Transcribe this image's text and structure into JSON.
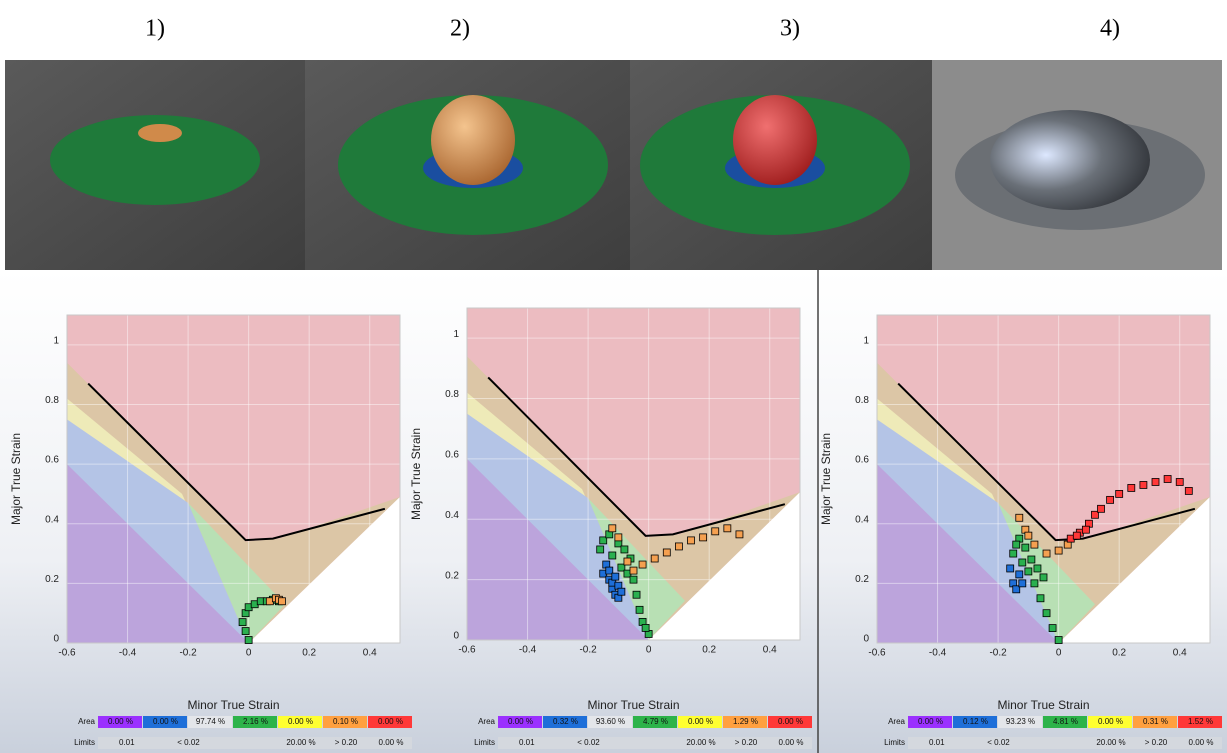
{
  "panel_labels": [
    "1)",
    "2)",
    "3)",
    "4)"
  ],
  "chart_data": [
    {
      "type": "flc",
      "xlabel": "Minor True Strain",
      "ylabel": "Major True Strain",
      "xlim": [
        -0.6,
        0.5
      ],
      "ylim": [
        0,
        1.1
      ],
      "xticks": [
        -0.6,
        -0.4,
        -0.2,
        0,
        0.2,
        0.4
      ],
      "yticks": [
        0,
        0.2,
        0.4,
        0.6,
        0.8,
        1
      ],
      "grid": true,
      "zones": [
        {
          "color": "#ecbcc1",
          "x": [
            -0.6,
            0.5,
            0.5,
            -0.6
          ],
          "y": [
            0,
            0,
            1.1,
            1.1
          ]
        },
        {
          "color": "#dcc6a6",
          "x": [
            -0.6,
            -0.01,
            0.1,
            0.5,
            0,
            -0.6
          ],
          "y": [
            0.94,
            0.34,
            0.35,
            0.49,
            0,
            0
          ]
        },
        {
          "color": "#eeeab8",
          "x": [
            -0.6,
            -0.22,
            0,
            -0.6
          ],
          "y": [
            0.82,
            0.5,
            0,
            0
          ]
        },
        {
          "color": "#b4c4e6",
          "x": [
            -0.6,
            -0.2,
            0,
            -0.6
          ],
          "y": [
            0.75,
            0.47,
            0,
            0
          ]
        },
        {
          "color": "#b8e0b4",
          "x": [
            -0.2,
            0.12,
            0
          ],
          "y": [
            0.47,
            0.13,
            0
          ]
        },
        {
          "color": "#bca4dc",
          "x": [
            -0.6,
            0,
            -0.6
          ],
          "y": [
            0.6,
            0,
            0
          ]
        },
        {
          "color": "#ffffff",
          "x": [
            0,
            0.5,
            0.5
          ],
          "y": [
            0,
            0.49,
            0
          ]
        }
      ],
      "flc": {
        "color": "#000000",
        "x": [
          -0.53,
          -0.01,
          0.08,
          0.45
        ],
        "y": [
          0.87,
          0.345,
          0.35,
          0.45
        ]
      },
      "series": [
        {
          "color": "#2ab04f",
          "x": [
            0,
            -0.01,
            -0.02,
            -0.01,
            0,
            0.02,
            0.04,
            0.06,
            0.08,
            0.1
          ],
          "y": [
            0.01,
            0.04,
            0.07,
            0.1,
            0.12,
            0.13,
            0.14,
            0.14,
            0.145,
            0.14
          ]
        },
        {
          "color": "#f5a050",
          "x": [
            0.07,
            0.09,
            0.1,
            0.11
          ],
          "y": [
            0.14,
            0.15,
            0.145,
            0.14
          ]
        }
      ],
      "area_label": "Area",
      "area": [
        "0.00 %",
        "0.00 %",
        "97.74 %",
        "2.16 %",
        "0.00 %",
        "0.10 %",
        "0.00 %"
      ],
      "area_colors": [
        "#9b30ff",
        "#1e6fd9",
        "#e4e6ea",
        "#2db34a",
        "#ffff30",
        "#ffa040",
        "#ff3838"
      ],
      "limits_label": "Limits",
      "limits": [
        "0.01",
        "< 0.02",
        "20.00 %",
        "> 0.20",
        "0.00 %"
      ]
    },
    {
      "type": "flc",
      "xlabel": "Minor True Strain",
      "ylabel": "Major True Strain",
      "xlim": [
        -0.6,
        0.5
      ],
      "ylim": [
        0,
        1.1
      ],
      "xticks": [
        -0.6,
        -0.4,
        -0.2,
        0,
        0.2,
        0.4
      ],
      "yticks": [
        0,
        0.2,
        0.4,
        0.6,
        0.8,
        1
      ],
      "grid": true,
      "zones": [
        {
          "color": "#ecbcc1",
          "x": [
            -0.6,
            0.5,
            0.5,
            -0.6
          ],
          "y": [
            0,
            0,
            1.1,
            1.1
          ]
        },
        {
          "color": "#dcc6a6",
          "x": [
            -0.6,
            -0.01,
            0.1,
            0.5,
            0,
            -0.6
          ],
          "y": [
            0.94,
            0.34,
            0.35,
            0.49,
            0,
            0
          ]
        },
        {
          "color": "#eeeab8",
          "x": [
            -0.6,
            -0.22,
            0,
            -0.6
          ],
          "y": [
            0.82,
            0.5,
            0,
            0
          ]
        },
        {
          "color": "#b4c4e6",
          "x": [
            -0.6,
            -0.2,
            0,
            -0.6
          ],
          "y": [
            0.75,
            0.47,
            0,
            0
          ]
        },
        {
          "color": "#b8e0b4",
          "x": [
            -0.2,
            0.12,
            0
          ],
          "y": [
            0.47,
            0.13,
            0
          ]
        },
        {
          "color": "#bca4dc",
          "x": [
            -0.6,
            0,
            -0.6
          ],
          "y": [
            0.6,
            0,
            0
          ]
        },
        {
          "color": "#ffffff",
          "x": [
            0,
            0.5,
            0.5
          ],
          "y": [
            0,
            0.49,
            0
          ]
        }
      ],
      "flc": {
        "color": "#000000",
        "x": [
          -0.53,
          -0.01,
          0.08,
          0.45
        ],
        "y": [
          0.87,
          0.345,
          0.35,
          0.45
        ]
      },
      "series": [
        {
          "color": "#1e6fd9",
          "x": [
            -0.15,
            -0.14,
            -0.13,
            -0.12,
            -0.11,
            -0.1,
            -0.13,
            -0.12,
            -0.1,
            -0.09,
            -0.11
          ],
          "y": [
            0.22,
            0.25,
            0.2,
            0.17,
            0.15,
            0.14,
            0.23,
            0.19,
            0.18,
            0.16,
            0.21
          ]
        },
        {
          "color": "#2ab04f",
          "x": [
            -0.16,
            -0.15,
            -0.13,
            -0.1,
            -0.08,
            -0.06,
            -0.12,
            -0.09,
            -0.04,
            -0.03,
            -0.02,
            0,
            -0.01,
            -0.07,
            -0.05
          ],
          "y": [
            0.3,
            0.33,
            0.35,
            0.32,
            0.3,
            0.27,
            0.28,
            0.24,
            0.15,
            0.1,
            0.06,
            0.02,
            0.04,
            0.22,
            0.2
          ]
        },
        {
          "color": "#f5a050",
          "x": [
            -0.07,
            -0.05,
            -0.02,
            0.02,
            0.06,
            0.1,
            0.14,
            0.18,
            0.22,
            0.26,
            0.3,
            -0.12,
            -0.1
          ],
          "y": [
            0.26,
            0.23,
            0.25,
            0.27,
            0.29,
            0.31,
            0.33,
            0.34,
            0.36,
            0.37,
            0.35,
            0.37,
            0.34
          ]
        }
      ],
      "area_label": "Area",
      "area": [
        "0.00 %",
        "0.32 %",
        "93.60 %",
        "4.79 %",
        "0.00 %",
        "1.29 %",
        "0.00 %"
      ],
      "area_colors": [
        "#9b30ff",
        "#1e6fd9",
        "#e4e6ea",
        "#2db34a",
        "#ffff30",
        "#ffa040",
        "#ff3838"
      ],
      "limits_label": "Limits",
      "limits": [
        "0.01",
        "< 0.02",
        "20.00 %",
        "> 0.20",
        "0.00 %"
      ]
    },
    {
      "type": "flc",
      "xlabel": "Minor True Strain",
      "ylabel": "Major True Strain",
      "xlim": [
        -0.6,
        0.5
      ],
      "ylim": [
        0,
        1.1
      ],
      "xticks": [
        -0.6,
        -0.4,
        -0.2,
        0,
        0.2,
        0.4
      ],
      "yticks": [
        0,
        0.2,
        0.4,
        0.6,
        0.8,
        1
      ],
      "grid": true,
      "zones": [
        {
          "color": "#ecbcc1",
          "x": [
            -0.6,
            0.5,
            0.5,
            -0.6
          ],
          "y": [
            0,
            0,
            1.1,
            1.1
          ]
        },
        {
          "color": "#dcc6a6",
          "x": [
            -0.6,
            -0.01,
            0.1,
            0.5,
            0,
            -0.6
          ],
          "y": [
            0.94,
            0.34,
            0.35,
            0.49,
            0,
            0
          ]
        },
        {
          "color": "#eeeab8",
          "x": [
            -0.6,
            -0.22,
            0,
            -0.6
          ],
          "y": [
            0.82,
            0.5,
            0,
            0
          ]
        },
        {
          "color": "#b4c4e6",
          "x": [
            -0.6,
            -0.2,
            0,
            -0.6
          ],
          "y": [
            0.75,
            0.47,
            0,
            0
          ]
        },
        {
          "color": "#b8e0b4",
          "x": [
            -0.2,
            0.12,
            0
          ],
          "y": [
            0.47,
            0.13,
            0
          ]
        },
        {
          "color": "#bca4dc",
          "x": [
            -0.6,
            0,
            -0.6
          ],
          "y": [
            0.6,
            0,
            0
          ]
        },
        {
          "color": "#ffffff",
          "x": [
            0,
            0.5,
            0.5
          ],
          "y": [
            0,
            0.49,
            0
          ]
        }
      ],
      "flc": {
        "color": "#000000",
        "x": [
          -0.53,
          -0.01,
          0.08,
          0.45
        ],
        "y": [
          0.87,
          0.345,
          0.35,
          0.45
        ]
      },
      "series": [
        {
          "color": "#1e6fd9",
          "x": [
            -0.16,
            -0.15,
            -0.14,
            -0.13,
            -0.12
          ],
          "y": [
            0.25,
            0.2,
            0.18,
            0.23,
            0.2
          ]
        },
        {
          "color": "#2ab04f",
          "x": [
            -0.15,
            -0.13,
            -0.11,
            -0.09,
            -0.07,
            -0.05,
            -0.12,
            -0.1,
            -0.06,
            -0.04,
            -0.02,
            0,
            -0.14,
            -0.08
          ],
          "y": [
            0.3,
            0.35,
            0.32,
            0.28,
            0.25,
            0.22,
            0.27,
            0.24,
            0.15,
            0.1,
            0.05,
            0.01,
            0.33,
            0.2
          ]
        },
        {
          "color": "#f5a050",
          "x": [
            -0.13,
            -0.11,
            -0.08,
            -0.04,
            0,
            0.03,
            -0.1
          ],
          "y": [
            0.42,
            0.38,
            0.33,
            0.3,
            0.31,
            0.33,
            0.36
          ]
        },
        {
          "color": "#ff3838",
          "x": [
            0.04,
            0.07,
            0.1,
            0.12,
            0.14,
            0.17,
            0.2,
            0.24,
            0.28,
            0.32,
            0.36,
            0.4,
            0.43,
            0.09,
            0.06
          ],
          "y": [
            0.35,
            0.37,
            0.4,
            0.43,
            0.45,
            0.48,
            0.5,
            0.52,
            0.53,
            0.54,
            0.55,
            0.54,
            0.51,
            0.38,
            0.36
          ]
        }
      ],
      "area_label": "Area",
      "area": [
        "0.00 %",
        "0.12 %",
        "93.23 %",
        "4.81 %",
        "0.00 %",
        "0.31 %",
        "1.52 %"
      ],
      "area_colors": [
        "#9b30ff",
        "#1e6fd9",
        "#e4e6ea",
        "#2db34a",
        "#ffff30",
        "#ffa040",
        "#ff3838"
      ],
      "limits_label": "Limits",
      "limits": [
        "0.01",
        "< 0.02",
        "20.00 %",
        "> 0.20",
        "0.00 %"
      ]
    }
  ]
}
